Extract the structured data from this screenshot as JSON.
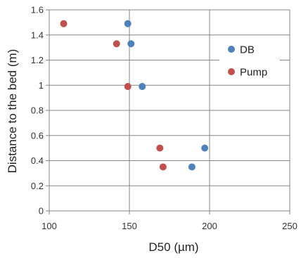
{
  "chart_data": {
    "type": "scatter",
    "title": "",
    "xlabel": "D50 (µm)",
    "ylabel": "Distance to the bed (m)",
    "xlim": [
      100,
      250
    ],
    "ylim": [
      0,
      1.6
    ],
    "xticks": [
      100,
      150,
      200,
      250
    ],
    "yticks": [
      0,
      0.2,
      0.4,
      0.6,
      0.8,
      1,
      1.2,
      1.4,
      1.6
    ],
    "grid": true,
    "legend_position": "right",
    "series": [
      {
        "name": "DB",
        "color": "#4f81bd",
        "points": [
          {
            "x": 149,
            "y": 1.49
          },
          {
            "x": 151,
            "y": 1.33
          },
          {
            "x": 158,
            "y": 0.99
          },
          {
            "x": 197,
            "y": 0.5
          },
          {
            "x": 189,
            "y": 0.35
          }
        ]
      },
      {
        "name": "Pump",
        "color": "#c0504d",
        "points": [
          {
            "x": 109,
            "y": 1.49
          },
          {
            "x": 142,
            "y": 1.33
          },
          {
            "x": 149,
            "y": 0.99
          },
          {
            "x": 169,
            "y": 0.5
          },
          {
            "x": 171,
            "y": 0.35
          }
        ]
      }
    ]
  }
}
